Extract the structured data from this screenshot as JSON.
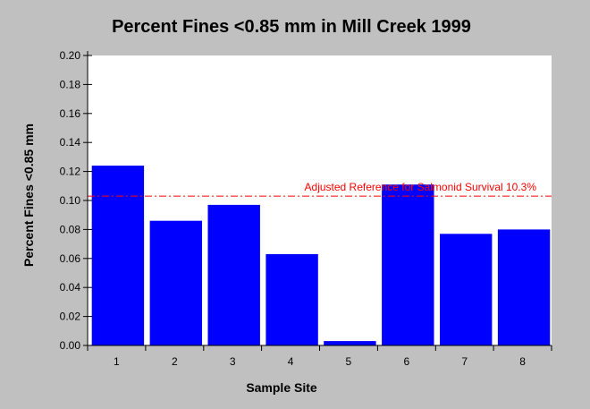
{
  "chart_data": {
    "type": "bar",
    "title": "Percent Fines <0.85 mm in Mill Creek 1999",
    "xlabel": "Sample Site",
    "ylabel": "Percent Fines <0.85 mm",
    "categories": [
      "1",
      "2",
      "3",
      "4",
      "5",
      "6",
      "7",
      "8"
    ],
    "values": [
      0.124,
      0.086,
      0.097,
      0.063,
      0.003,
      0.111,
      0.077,
      0.08
    ],
    "ylim": [
      0,
      0.2
    ],
    "yticks": [
      "0.00",
      "0.02",
      "0.04",
      "0.06",
      "0.08",
      "0.10",
      "0.12",
      "0.14",
      "0.16",
      "0.18",
      "0.20"
    ],
    "grid": false,
    "reference_line": {
      "value": 0.103,
      "label": "Adjusted Reference for Salmonid Survival 10.3%",
      "color": "#ff0000"
    },
    "bar_color": "#0000ff",
    "plot_background": "#ffffff",
    "page_background": "#c0c0c0"
  }
}
